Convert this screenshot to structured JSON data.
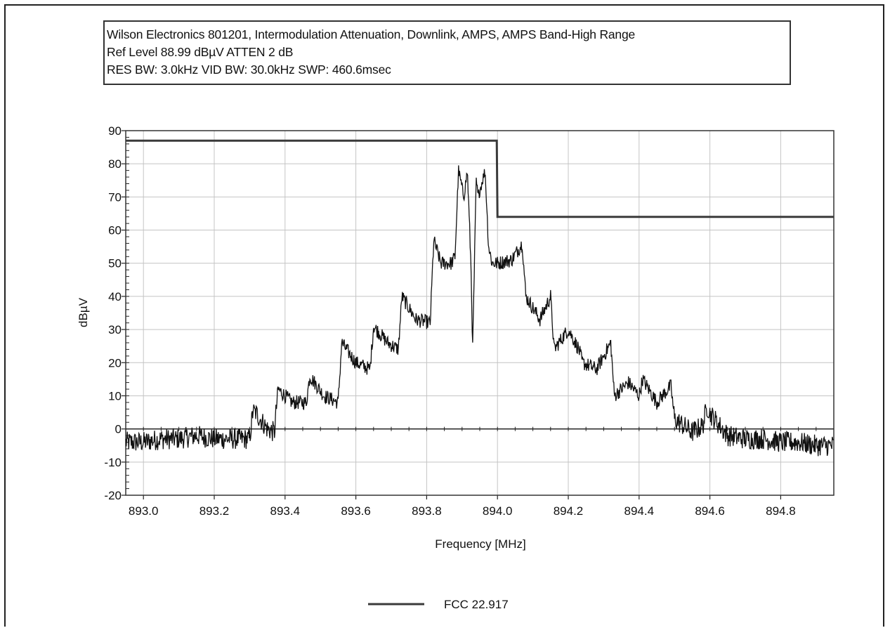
{
  "header": {
    "line1": "Wilson Electronics 801201, Intermodulation Attenuation, Downlink, AMPS, AMPS Band-High Range",
    "line2": "Ref Level 88.99 dBµV    ATTEN 2 dB",
    "line3": "RES BW: 3.0kHz  VID BW: 30.0kHz  SWP: 460.6msec"
  },
  "chart_data": {
    "type": "line",
    "xlabel": "Frequency [MHz]",
    "ylabel": "dBµV",
    "xlim": [
      892.95,
      894.95
    ],
    "ylim": [
      -20,
      90
    ],
    "x_ticks": [
      "893.0",
      "893.2",
      "893.4",
      "893.6",
      "893.8",
      "894.0",
      "894.2",
      "894.4",
      "894.6",
      "894.8"
    ],
    "y_ticks": [
      "90",
      "80",
      "70",
      "60",
      "50",
      "40",
      "30",
      "20",
      "10",
      "0",
      "-10",
      "-20"
    ],
    "grid": true,
    "legend_position": "bottom-center",
    "limit_line": {
      "name": "FCC 22.917",
      "x": [
        892.95,
        893.998,
        894.0,
        894.95
      ],
      "y": [
        87,
        87,
        64,
        64
      ]
    },
    "trace": {
      "x": [
        892.95,
        893.0,
        893.05,
        893.1,
        893.15,
        893.2,
        893.25,
        893.3,
        893.31,
        893.35,
        893.37,
        893.38,
        893.42,
        893.46,
        893.47,
        893.51,
        893.55,
        893.56,
        893.6,
        893.64,
        893.65,
        893.69,
        893.72,
        893.73,
        893.77,
        893.81,
        893.82,
        893.84,
        893.87,
        893.88,
        893.89,
        893.905,
        893.915,
        893.925,
        893.93,
        893.935,
        893.94,
        893.945,
        893.955,
        893.965,
        893.975,
        893.985,
        893.995,
        894.0,
        894.04,
        894.07,
        894.08,
        894.12,
        894.15,
        894.16,
        894.2,
        894.23,
        894.24,
        894.28,
        894.32,
        894.33,
        894.37,
        894.4,
        894.41,
        894.45,
        894.49,
        894.5,
        894.55,
        894.58,
        894.59,
        894.65,
        894.7,
        894.75,
        894.8,
        894.85,
        894.9,
        894.95
      ],
      "y": [
        -4,
        -4,
        -3,
        -3,
        -2,
        -3,
        -3,
        -3,
        6,
        0,
        -1,
        12,
        8,
        8,
        16,
        10,
        8,
        26,
        20,
        18,
        31,
        26,
        24,
        40,
        33,
        32,
        57,
        50,
        50,
        52,
        78,
        70,
        78,
        50,
        24,
        50,
        75,
        70,
        74,
        78,
        55,
        50,
        50,
        50,
        51,
        56,
        40,
        33,
        40,
        24,
        30,
        24,
        20,
        18,
        26,
        10,
        14,
        10,
        15,
        8,
        13,
        3,
        -1,
        1,
        6,
        -2,
        -3,
        -3,
        -4,
        -4,
        -5,
        -5
      ]
    }
  }
}
